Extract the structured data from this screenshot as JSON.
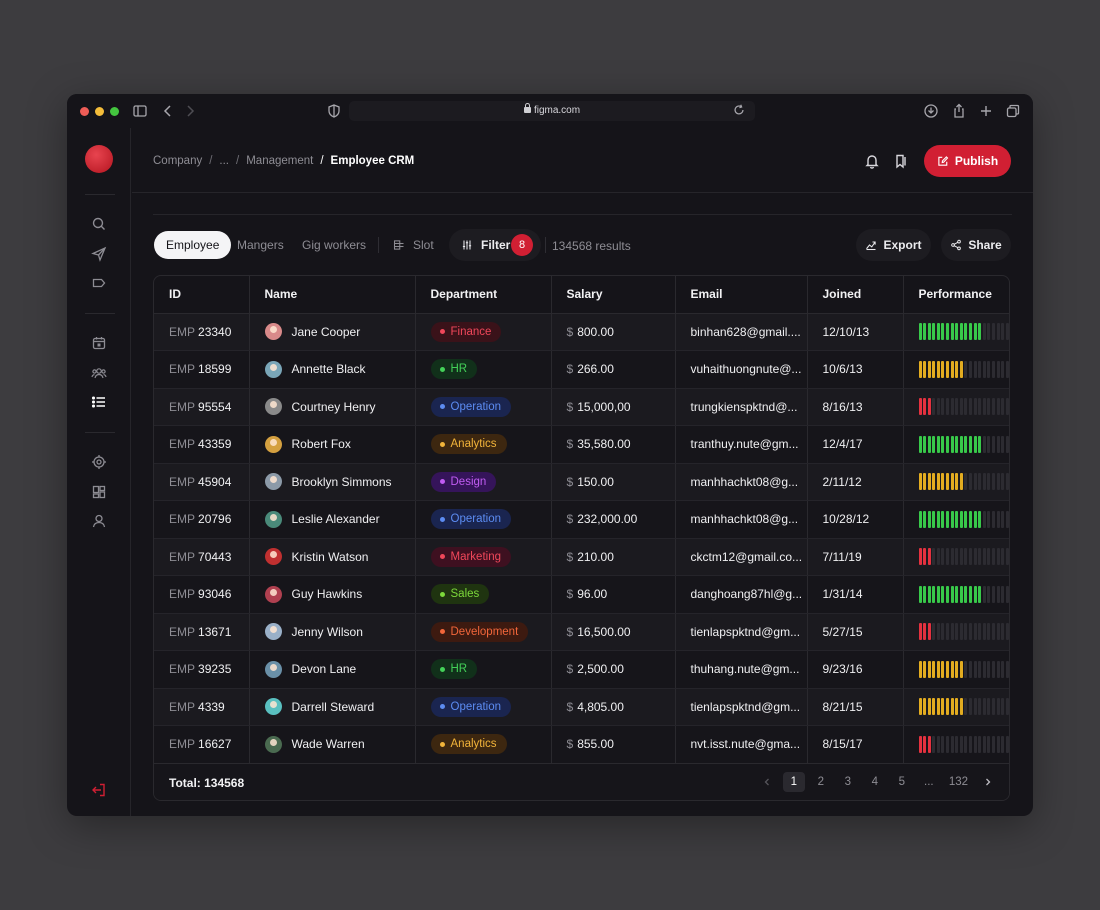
{
  "browser": {
    "url": "figma.com",
    "traffic_colors": [
      "#ee5d57",
      "#f4bd3a",
      "#44c53f"
    ]
  },
  "sidebar": {
    "logo_color": "#d11f33",
    "nav_icons": [
      "search-icon",
      "send-icon",
      "tag-icon",
      "calendar-icon",
      "users-icon",
      "list-icon",
      "target-icon",
      "board-icon",
      "user-icon"
    ],
    "active_icon": "list-icon",
    "logout_icon": "logout-icon"
  },
  "header": {
    "breadcrumbs": [
      "Company",
      "...",
      "Management",
      "Employee CRM"
    ],
    "publish_label": "Publish",
    "accent": "#d11f33"
  },
  "toolbar": {
    "tabs": [
      "Employee",
      "Mangers",
      "Gig workers"
    ],
    "active_tab": "Employee",
    "slot_label": "Slot",
    "filter_label": "Filter",
    "filter_count": "8",
    "results_text": "134568 results",
    "export_label": "Export",
    "share_label": "Share"
  },
  "table": {
    "columns": [
      "ID",
      "Name",
      "Department",
      "Salary",
      "Email",
      "Joined",
      "Performance"
    ],
    "id_prefix": "EMP",
    "salary_prefix": "$",
    "rows": [
      {
        "id": "23340",
        "name": "Jane Cooper",
        "department": "Finance",
        "salary": "800.00",
        "email": "binhan628@gmail....",
        "joined": "12/10/13",
        "performance": 0.7,
        "perf_color": "#38c94a"
      },
      {
        "id": "18599",
        "name": "Annette Black",
        "department": "HR",
        "salary": "266.00",
        "email": "vuhaithuongnute@...",
        "joined": "10/6/13",
        "performance": 0.5,
        "perf_color": "#e3ac20"
      },
      {
        "id": "95554",
        "name": "Courtney Henry",
        "department": "Operation",
        "salary": "15,000,00",
        "email": "trungkienspktnd@...",
        "joined": "8/16/13",
        "performance": 0.15,
        "perf_color": "#e4313f"
      },
      {
        "id": "43359",
        "name": "Robert Fox",
        "department": "Analytics",
        "salary": "35,580.00",
        "email": "tranthuy.nute@gm...",
        "joined": "12/4/17",
        "performance": 0.7,
        "perf_color": "#38c94a"
      },
      {
        "id": "45904",
        "name": "Brooklyn Simmons",
        "department": "Design",
        "salary": "150.00",
        "email": "manhhachkt08@g...",
        "joined": "2/11/12",
        "performance": 0.5,
        "perf_color": "#e3ac20"
      },
      {
        "id": "20796",
        "name": "Leslie Alexander",
        "department": "Operation",
        "salary": "232,000.00",
        "email": "manhhachkt08@g...",
        "joined": "10/28/12",
        "performance": 0.7,
        "perf_color": "#38c94a"
      },
      {
        "id": "70443",
        "name": "Kristin Watson",
        "department": "Marketing",
        "salary": "210.00",
        "email": "ckctm12@gmail.co...",
        "joined": "7/11/19",
        "performance": 0.15,
        "perf_color": "#e4313f"
      },
      {
        "id": "93046",
        "name": "Guy Hawkins",
        "department": "Sales",
        "salary": "96.00",
        "email": "danghoang87hl@g...",
        "joined": "1/31/14",
        "performance": 0.7,
        "perf_color": "#38c94a"
      },
      {
        "id": "13671",
        "name": "Jenny Wilson",
        "department": "Development",
        "salary": "16,500.00",
        "email": "tienlapspktnd@gm...",
        "joined": "5/27/15",
        "performance": 0.15,
        "perf_color": "#e4313f"
      },
      {
        "id": "39235",
        "name": "Devon Lane",
        "department": "HR",
        "salary": "2,500.00",
        "email": "thuhang.nute@gm...",
        "joined": "9/23/16",
        "performance": 0.5,
        "perf_color": "#e3ac20"
      },
      {
        "id": "4339",
        "name": "Darrell Steward",
        "department": "Operation",
        "salary": "4,805.00",
        "email": "tienlapspktnd@gm...",
        "joined": "8/21/15",
        "performance": 0.5,
        "perf_color": "#e3ac20"
      },
      {
        "id": "16627",
        "name": "Wade Warren",
        "department": "Analytics",
        "salary": "855.00",
        "email": "nvt.isst.nute@gma...",
        "joined": "8/15/17",
        "performance": 0.15,
        "perf_color": "#e4313f"
      }
    ],
    "department_colors": {
      "Finance": {
        "text": "#f0475a",
        "bg": "#3a1219",
        "dot": "#f0475a"
      },
      "HR": {
        "text": "#43d158",
        "bg": "#11301a",
        "dot": "#43d158"
      },
      "Operation": {
        "text": "#5c8cf2",
        "bg": "#1a2550",
        "dot": "#5c8cf2"
      },
      "Analytics": {
        "text": "#f2b43a",
        "bg": "#3d2710",
        "dot": "#f2b43a"
      },
      "Design": {
        "text": "#c05cf2",
        "bg": "#35145a",
        "dot": "#c05cf2"
      },
      "Marketing": {
        "text": "#f0475a",
        "bg": "#3e1020",
        "dot": "#f0475a"
      },
      "Sales": {
        "text": "#7cd83a",
        "bg": "#1f3410",
        "dot": "#7cd83a"
      },
      "Development": {
        "text": "#f2663a",
        "bg": "#3d1a10",
        "dot": "#f2663a"
      }
    },
    "avatar_colors": [
      "#d98a8a",
      "#7aa6b8",
      "#8a8a8a",
      "#d4a040",
      "#8c9aa8",
      "#4a8a7a",
      "#c03030",
      "#b04050",
      "#9ab0c8",
      "#6a90a8",
      "#5ac0c0",
      "#4a6a50"
    ]
  },
  "footer": {
    "total_label": "Total: 134568",
    "pages": [
      "1",
      "2",
      "3",
      "4",
      "5",
      "...",
      "132"
    ],
    "current_page": "1"
  }
}
